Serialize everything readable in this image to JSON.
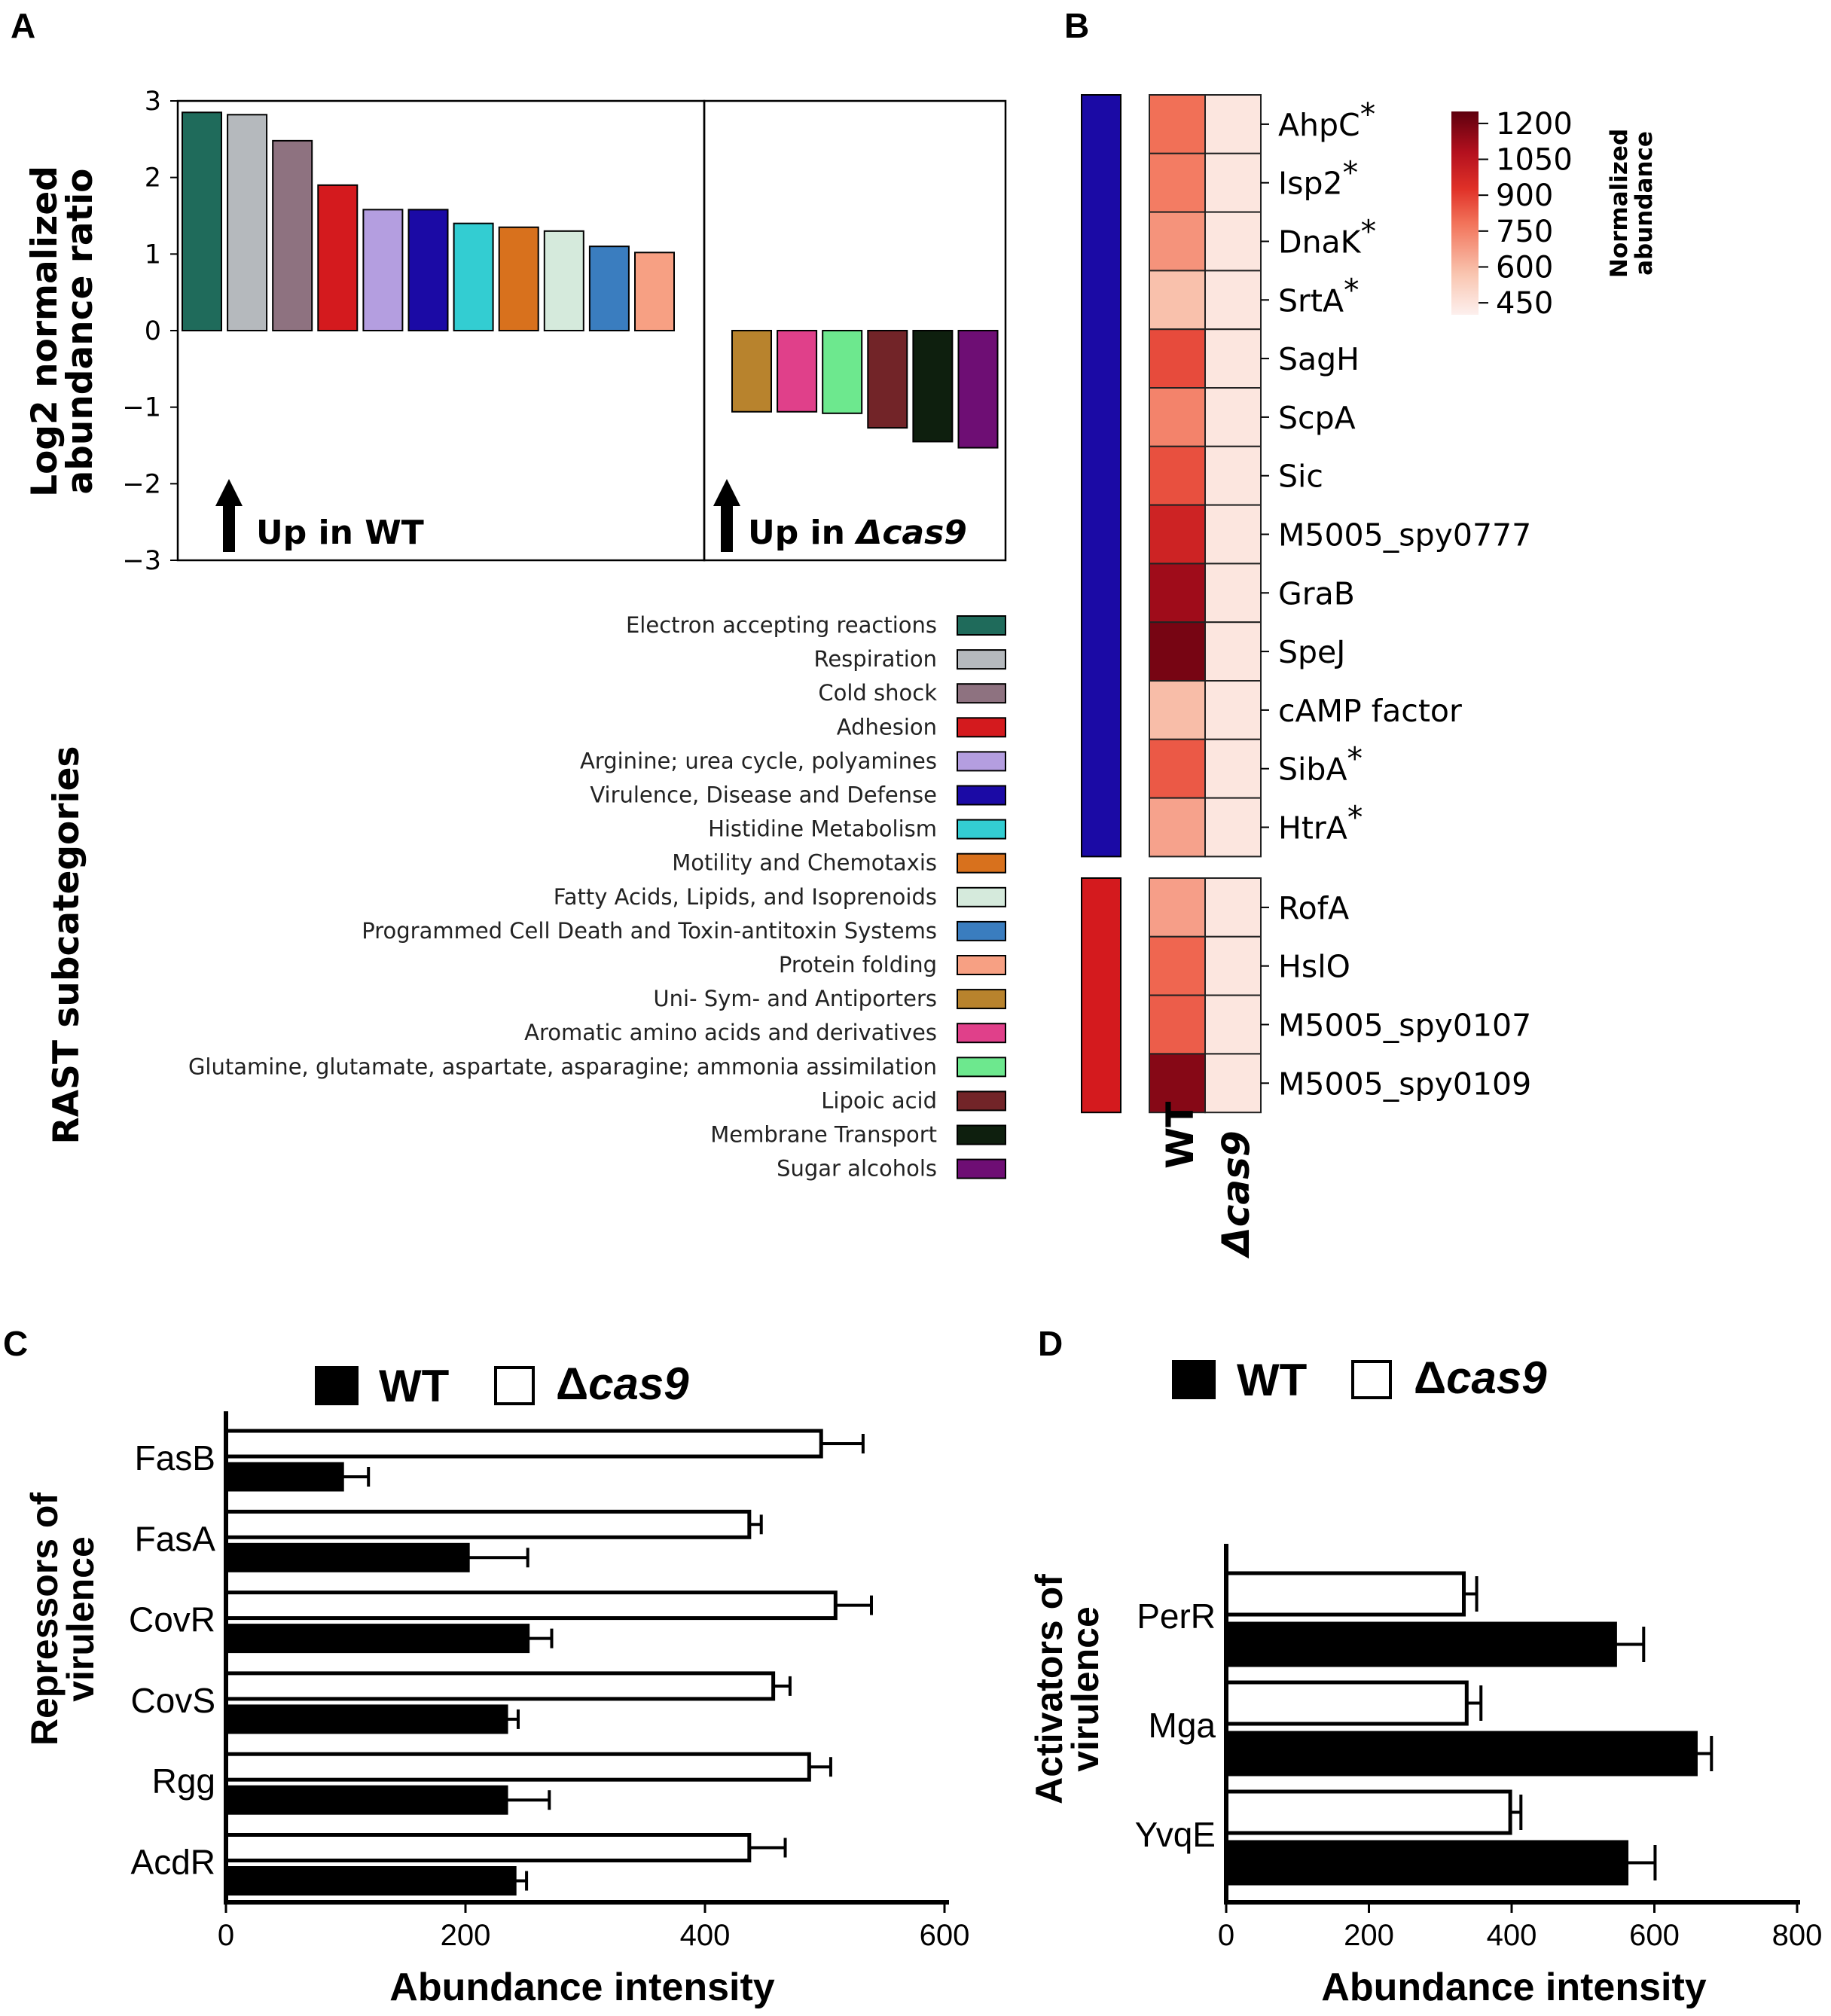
{
  "panel_labels": {
    "a": "A",
    "b": "B",
    "c": "C",
    "d": "D"
  },
  "colors": {
    "wt_fill": "#000000",
    "cas9_fill": "#ffffff",
    "virulence_bar": "#1b0aa5",
    "adhesion_bar": "#d41a1e",
    "heatmap_low": "#fdf0ee",
    "heatmap_high": "#5e000e"
  },
  "chart_data": [
    {
      "id": "A",
      "type": "bar",
      "title": "",
      "ylabel": "Log2 normalized abundance ratio",
      "ylabel_line1": "Log2  normalized",
      "ylabel_line2": "abundance ratio",
      "ylim": [
        -3,
        3
      ],
      "yticks": [
        "3",
        "2",
        "1",
        "0",
        "−1",
        "−2",
        "−3"
      ],
      "group_labels": {
        "wt": "Up in WT",
        "cas9_prefix": "Up in ",
        "cas9_italic": "Δcas9"
      },
      "legend_title": "RAST subcategories",
      "categories": [
        "Electron accepting reactions",
        "Respiration",
        "Cold shock",
        "Adhesion",
        "Arginine; urea cycle, polyamines",
        "Virulence, Disease and Defense",
        "Histidine Metabolism",
        "Motility and Chemotaxis",
        "Fatty Acids, Lipids, and Isoprenoids",
        "Programmed Cell Death and Toxin-antitoxin Systems",
        "Protein folding",
        "Uni- Sym- and Antiporters",
        "Aromatic amino acids and derivatives",
        "Glutamine, glutamate, aspartate, asparagine; ammonia assimilation",
        "Lipoic acid",
        "Membrane Transport",
        "Sugar alcohols"
      ],
      "values": [
        2.85,
        2.82,
        2.48,
        1.9,
        1.58,
        1.58,
        1.4,
        1.35,
        1.3,
        1.1,
        1.02,
        -1.06,
        -1.06,
        -1.08,
        -1.27,
        -1.45,
        -1.53
      ],
      "bar_colors": [
        "#1f6b5b",
        "#b5b9bd",
        "#8e7280",
        "#d41a1e",
        "#b49ee0",
        "#1b0aa5",
        "#33cdd2",
        "#d8711d",
        "#d5eadc",
        "#3a7dbf",
        "#f7a083",
        "#b8832d",
        "#e0408a",
        "#6de88e",
        "#722428",
        "#0e1f0e",
        "#6e0e74"
      ]
    },
    {
      "id": "B",
      "type": "heatmap",
      "columns": [
        "WT",
        "Δcas9"
      ],
      "colorbar_label_line1": "Normalized",
      "colorbar_label_line2": "abundance",
      "colorbar_range": [
        400,
        1250
      ],
      "colorbar_ticks": [
        "1200",
        "1050",
        "900",
        "750",
        "600",
        "450"
      ],
      "colorbar_tick_values": [
        1200,
        1050,
        900,
        750,
        600,
        450
      ],
      "groups": [
        {
          "name": "Virulence, Disease and Defense",
          "color": "#1b0aa5",
          "start": 0,
          "count": 13
        },
        {
          "name": "Adhesion",
          "color": "#d41a1e",
          "start": 13,
          "count": 4
        }
      ],
      "rows": [
        {
          "label": "AhpC",
          "star": "*",
          "wt": 790,
          "cas9": 440
        },
        {
          "label": "Isp2",
          "star": "*",
          "wt": 760,
          "cas9": 440
        },
        {
          "label": "DnaK",
          "star": "*",
          "wt": 700,
          "cas9": 440
        },
        {
          "label": "SrtA",
          "star": "*",
          "wt": 580,
          "cas9": 440
        },
        {
          "label": "SagH",
          "star": "",
          "wt": 870,
          "cas9": 440
        },
        {
          "label": "ScpA",
          "star": "",
          "wt": 740,
          "cas9": 440
        },
        {
          "label": "Sic",
          "star": "",
          "wt": 860,
          "cas9": 440
        },
        {
          "label": "M5005_spy0777",
          "star": "",
          "wt": 990,
          "cas9": 440
        },
        {
          "label": "GraB",
          "star": "",
          "wt": 1120,
          "cas9": 440
        },
        {
          "label": "SpeJ",
          "star": "",
          "wt": 1200,
          "cas9": 440
        },
        {
          "label": "cAMP factor",
          "star": "",
          "wt": 590,
          "cas9": 440
        },
        {
          "label": "SibA",
          "star": "*",
          "wt": 840,
          "cas9": 440
        },
        {
          "label": "HtrA",
          "star": "*",
          "wt": 660,
          "cas9": 440
        },
        {
          "label": "RofA",
          "star": "",
          "wt": 670,
          "cas9": 440
        },
        {
          "label": "HslO",
          "star": "",
          "wt": 810,
          "cas9": 440
        },
        {
          "label": "M5005_spy0107",
          "star": "",
          "wt": 830,
          "cas9": 440
        },
        {
          "label": "M5005_spy0109",
          "star": "",
          "wt": 1170,
          "cas9": 440
        }
      ]
    },
    {
      "id": "C",
      "type": "bar",
      "orientation": "horizontal",
      "legend": {
        "wt": "WT",
        "cas9": "Δcas9",
        "cas9_delta": "Δ",
        "cas9_italic": "cas9"
      },
      "ylabel_line1": "Repressors of",
      "ylabel_line2": "virulence",
      "xlabel": "Abundance intensity",
      "xlim": [
        0,
        600
      ],
      "xticks": [
        "0",
        "200",
        "400",
        "600"
      ],
      "xtick_values": [
        0,
        200,
        400,
        600
      ],
      "categories": [
        "FasB",
        "FasA",
        "CovR",
        "CovS",
        "Rgg",
        "AcdR"
      ],
      "series": [
        {
          "name": "Δcas9",
          "values": [
            497,
            437,
            509,
            457,
            487,
            437
          ],
          "errors": [
            35,
            10,
            30,
            14,
            18,
            30
          ]
        },
        {
          "name": "WT",
          "values": [
            97,
            202,
            252,
            234,
            234,
            241
          ],
          "errors": [
            22,
            50,
            20,
            10,
            36,
            10
          ]
        }
      ]
    },
    {
      "id": "D",
      "type": "bar",
      "orientation": "horizontal",
      "legend": {
        "wt": "WT",
        "cas9": "Δcas9",
        "cas9_delta": "Δ",
        "cas9_italic": "cas9"
      },
      "ylabel_line1": "Activators of",
      "ylabel_line2": "virulence",
      "xlabel": "Abundance intensity",
      "xlim": [
        0,
        800
      ],
      "xticks": [
        "0",
        "200",
        "400",
        "600",
        "800"
      ],
      "xtick_values": [
        0,
        200,
        400,
        600,
        800
      ],
      "categories": [
        "PerR",
        "Mga",
        "YvqE"
      ],
      "series": [
        {
          "name": "Δcas9",
          "values": [
            333,
            337,
            398
          ],
          "errors": [
            18,
            20,
            15
          ]
        },
        {
          "name": "WT",
          "values": [
            545,
            658,
            561
          ],
          "errors": [
            40,
            22,
            40
          ]
        }
      ]
    }
  ]
}
